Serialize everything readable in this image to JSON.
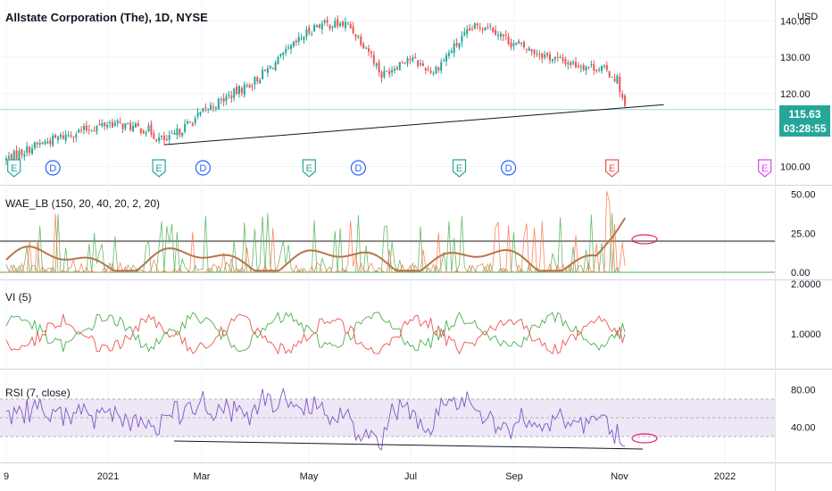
{
  "chart_data": {
    "type": "candlestick",
    "title": "Allstate Corporation (The), 1D, NYSE",
    "currency": "USD",
    "last_price": "115.63",
    "countdown": "03:28:55",
    "x_ticks": [
      "9",
      "2021",
      "Mar",
      "May",
      "Jul",
      "Sep",
      "Nov",
      "2022"
    ],
    "price_pane": {
      "y_ticks": [
        "140.00",
        "130.00",
        "120.00",
        "100.00"
      ],
      "ylim": [
        95,
        144
      ],
      "anchors": [
        {
          "d": 0,
          "v": 102
        },
        {
          "d": 12,
          "v": 106
        },
        {
          "d": 25,
          "v": 109
        },
        {
          "d": 40,
          "v": 112
        },
        {
          "d": 55,
          "v": 110
        },
        {
          "d": 58,
          "v": 108
        },
        {
          "d": 62,
          "v": 107
        },
        {
          "d": 78,
          "v": 116
        },
        {
          "d": 95,
          "v": 123
        },
        {
          "d": 105,
          "v": 129
        },
        {
          "d": 115,
          "v": 136
        },
        {
          "d": 120,
          "v": 139
        },
        {
          "d": 132,
          "v": 139
        },
        {
          "d": 140,
          "v": 132
        },
        {
          "d": 145,
          "v": 125
        },
        {
          "d": 155,
          "v": 130
        },
        {
          "d": 165,
          "v": 126
        },
        {
          "d": 172,
          "v": 132
        },
        {
          "d": 180,
          "v": 138
        },
        {
          "d": 186,
          "v": 139
        },
        {
          "d": 195,
          "v": 134
        },
        {
          "d": 210,
          "v": 130
        },
        {
          "d": 220,
          "v": 128
        },
        {
          "d": 230,
          "v": 127
        },
        {
          "d": 236,
          "v": 124
        },
        {
          "d": 239,
          "v": 116
        }
      ],
      "trendline": [
        {
          "d": 61,
          "v": 106
        },
        {
          "d": 254,
          "v": 117
        }
      ],
      "horizontal_line": 115.63,
      "events": [
        {
          "type": "E",
          "d": 3,
          "color": "#26a69a"
        },
        {
          "type": "D",
          "d": 18,
          "color": "#2962ff"
        },
        {
          "type": "E",
          "d": 59,
          "color": "#26a69a"
        },
        {
          "type": "D",
          "d": 76,
          "color": "#2962ff"
        },
        {
          "type": "E",
          "d": 117,
          "color": "#26a69a"
        },
        {
          "type": "D",
          "d": 136,
          "color": "#2962ff"
        },
        {
          "type": "E",
          "d": 175,
          "color": "#26a69a"
        },
        {
          "type": "D",
          "d": 194,
          "color": "#2962ff"
        },
        {
          "type": "E",
          "d": 234,
          "color": "#ef5350"
        },
        {
          "type": "E",
          "d": 293,
          "color": "#e040fb"
        }
      ]
    },
    "wae_pane": {
      "label": "WAE_LB (150, 20, 40, 20, 2, 20)",
      "y_ticks": [
        "50.00",
        "25.00",
        "0.00"
      ],
      "ylim": [
        0,
        55
      ],
      "level": 20
    },
    "vi_pane": {
      "label": "VI (5)",
      "y_ticks": [
        "2.0000",
        "1.0000"
      ],
      "ylim": [
        0.3,
        2.0
      ]
    },
    "rsi_pane": {
      "label": "RSI (7, close)",
      "y_ticks": [
        "80.00",
        "40.00"
      ],
      "ylim": [
        10,
        90
      ],
      "band": [
        30,
        70
      ]
    },
    "colors": {
      "up": "#26a69a",
      "down": "#ef5350",
      "wae_green": "#4caf50",
      "wae_red": "#ff7043",
      "wae_ma": "#b5764a",
      "vi_plus": "#4caf50",
      "vi_minus": "#ef5350",
      "rsi": "#7e57c2",
      "rsi_band": "#ede7f6"
    }
  }
}
